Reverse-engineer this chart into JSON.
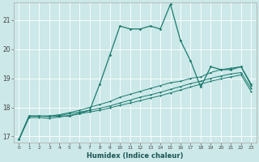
{
  "title": "",
  "xlabel": "Humidex (Indice chaleur)",
  "bg_color": "#cce8e8",
  "grid_color": "#ffffff",
  "line_color": "#1a7a6e",
  "xlim": [
    -0.5,
    23.5
  ],
  "ylim": [
    16.8,
    21.6
  ],
  "yticks": [
    17,
    18,
    19,
    20,
    21
  ],
  "xticks": [
    0,
    1,
    2,
    3,
    4,
    5,
    6,
    7,
    8,
    9,
    10,
    11,
    12,
    13,
    14,
    15,
    16,
    17,
    18,
    19,
    20,
    21,
    22,
    23
  ],
  "series": [
    [
      16.9,
      17.7,
      17.7,
      17.7,
      17.7,
      17.7,
      17.8,
      17.9,
      18.8,
      19.8,
      20.8,
      20.7,
      20.7,
      20.8,
      20.7,
      21.55,
      20.3,
      19.6,
      18.7,
      19.4,
      19.3,
      19.3,
      19.4,
      18.8
    ],
    [
      16.9,
      17.7,
      17.7,
      17.7,
      17.75,
      17.82,
      17.9,
      18.0,
      18.1,
      18.2,
      18.35,
      18.45,
      18.55,
      18.65,
      18.75,
      18.85,
      18.9,
      19.0,
      19.05,
      19.2,
      19.3,
      19.35,
      19.4,
      18.75
    ],
    [
      16.9,
      17.7,
      17.7,
      17.68,
      17.72,
      17.78,
      17.84,
      17.9,
      17.97,
      18.05,
      18.15,
      18.25,
      18.35,
      18.43,
      18.52,
      18.62,
      18.72,
      18.82,
      18.9,
      19.0,
      19.08,
      19.15,
      19.2,
      18.65
    ],
    [
      16.9,
      17.65,
      17.65,
      17.62,
      17.67,
      17.72,
      17.78,
      17.84,
      17.9,
      17.98,
      18.07,
      18.15,
      18.23,
      18.32,
      18.4,
      18.5,
      18.6,
      18.7,
      18.8,
      18.9,
      18.98,
      19.05,
      19.12,
      18.55
    ]
  ]
}
